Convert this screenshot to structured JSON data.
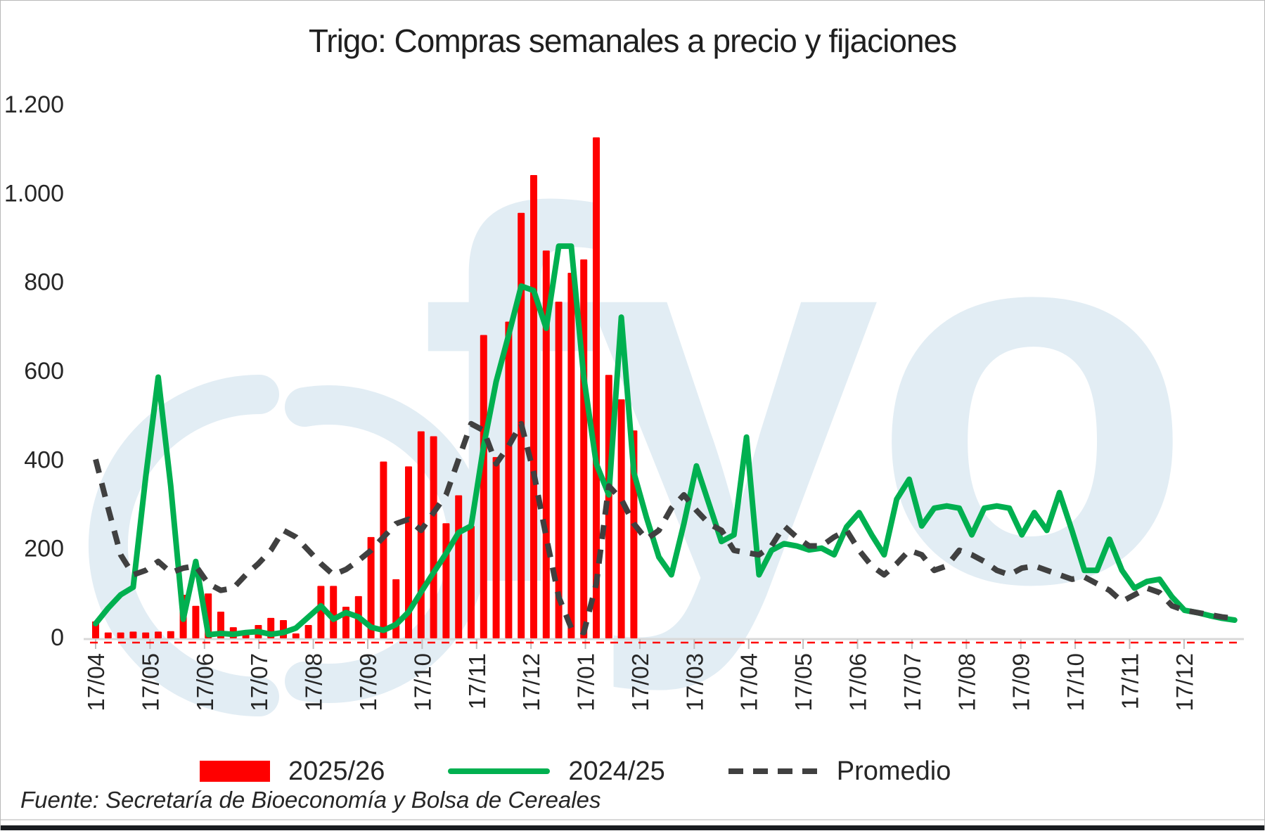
{
  "title": "Trigo: Compras semanales a precio y fijaciones",
  "source_note": "Fuente: Secretaría de Bioeconomía y Bolsa de Cereales",
  "watermark_text": "fyo",
  "colors": {
    "bars": "#FF0000",
    "line_2024_25": "#00B050",
    "promedio": "#404040",
    "watermark": "#E2EDF4",
    "axis": "#D9D9D9",
    "tick": "#BFBFBF",
    "text": "#262626",
    "zero_dash": "#FF0000"
  },
  "legend": {
    "items": [
      {
        "label": "2025/26",
        "swatch": "bar",
        "color": "#FF0000"
      },
      {
        "label": "2024/25",
        "swatch": "line",
        "color": "#00B050"
      },
      {
        "label": "Promedio",
        "swatch": "dashed-line",
        "color": "#404040"
      }
    ]
  },
  "chart_data": {
    "type": "bar",
    "subtype": "weekly combo: bars + line + dashed average line",
    "title": "Trigo: Compras semanales a precio y fijaciones",
    "xlabel": "",
    "ylabel": "",
    "ylim": [
      0,
      1200
    ],
    "y_tick_step": 200,
    "y_tick_labels": [
      "0",
      "200",
      "400",
      "600",
      "800",
      "1.000",
      "1.200"
    ],
    "grid": false,
    "legend_position": "bottom",
    "x_tick_labels": [
      "17/04",
      "17/05",
      "17/06",
      "17/07",
      "17/08",
      "17/09",
      "17/10",
      "17/11",
      "17/12",
      "17/01",
      "17/02",
      "17/03",
      "17/04",
      "17/05",
      "17/06",
      "17/07",
      "17/08",
      "17/09",
      "17/10",
      "17/11",
      "17/12"
    ],
    "x_unit": "weeks (monthly ticks, labels rotated 90°)",
    "weeks_per_month": 4.348,
    "zero_baseline_marker": {
      "type": "dashed red line at y=0 across full axis",
      "color": "#FF0000"
    },
    "series": [
      {
        "name": "2025/26",
        "type": "bar",
        "color": "#FF0000",
        "start_week": 0,
        "values": [
          35,
          10,
          10,
          12,
          10,
          12,
          13,
          95,
          70,
          98,
          57,
          22,
          11,
          27,
          43,
          38,
          8,
          27,
          115,
          115,
          68,
          92,
          225,
          395,
          130,
          384,
          463,
          452,
          256,
          319,
          250,
          680,
          405,
          710,
          955,
          1040,
          870,
          755,
          820,
          850,
          1125,
          590,
          535,
          465
        ]
      },
      {
        "name": "2024/25",
        "type": "line",
        "color": "#00B050",
        "start_week": 0,
        "values": [
          30,
          65,
          95,
          112,
          360,
          585,
          340,
          40,
          170,
          5,
          8,
          6,
          10,
          12,
          6,
          10,
          20,
          45,
          70,
          40,
          55,
          45,
          22,
          15,
          28,
          56,
          101,
          145,
          188,
          235,
          250,
          430,
          575,
          680,
          790,
          780,
          695,
          880,
          880,
          585,
          390,
          320,
          720,
          370,
          270,
          180,
          140,
          255,
          385,
          300,
          215,
          230,
          450,
          140,
          195,
          210,
          205,
          196,
          200,
          185,
          248,
          280,
          230,
          185,
          310,
          355,
          250,
          290,
          295,
          290,
          230,
          290,
          295,
          290,
          230,
          280,
          240,
          325,
          240,
          150,
          150,
          220,
          150,
          110,
          125,
          130,
          90,
          60,
          55,
          48,
          42,
          38
        ]
      },
      {
        "name": "Promedio",
        "type": "line_dashed",
        "color": "#404040",
        "start_week": 0,
        "values": [
          400,
          290,
          185,
          140,
          150,
          170,
          145,
          155,
          160,
          120,
          105,
          110,
          140,
          165,
          195,
          240,
          225,
          195,
          165,
          140,
          152,
          172,
          195,
          225,
          255,
          265,
          240,
          280,
          320,
          400,
          480,
          465,
          390,
          430,
          480,
          370,
          225,
          90,
          20,
          10,
          120,
          340,
          310,
          255,
          220,
          240,
          290,
          320,
          285,
          255,
          240,
          195,
          190,
          185,
          205,
          250,
          225,
          205,
          205,
          225,
          240,
          195,
          160,
          140,
          165,
          195,
          185,
          150,
          160,
          195,
          185,
          170,
          150,
          140,
          155,
          160,
          150,
          140,
          130,
          135,
          120,
          105,
          80,
          95,
          110,
          100,
          70,
          60,
          55,
          50,
          45,
          42
        ]
      }
    ]
  }
}
